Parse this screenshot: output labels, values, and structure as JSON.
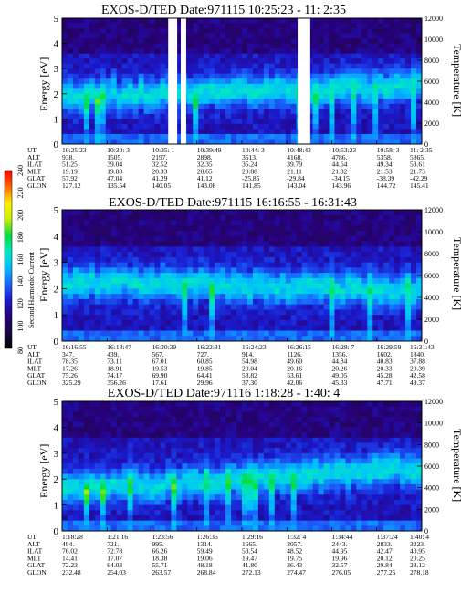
{
  "chart_data": [
    {
      "type": "heatmap",
      "title": "EXOS-D/TED   Date:971115  10:25:23 - 11: 2:35",
      "ylabel": "Energy [eV]",
      "y2label": "Temperature [K]",
      "ylim": [
        0,
        5
      ],
      "y2lim": [
        0,
        12000
      ],
      "yticks": [
        "0",
        "1",
        "2",
        "3",
        "4",
        "5"
      ],
      "y2ticks": [
        "0",
        "2000",
        "4000",
        "6000",
        "8000",
        "10000",
        "12000"
      ],
      "gaps_fraction": [
        [
          0.295,
          0.32
        ],
        [
          0.33,
          0.345
        ],
        [
          0.655,
          0.69
        ]
      ],
      "table_labels": [
        "UT",
        "ALT",
        "ILAT",
        "MLT",
        "GLAT",
        "GLON"
      ],
      "table": [
        [
          "10:25:23",
          "938.",
          "51.25",
          "19.19",
          "57.92",
          "127.12"
        ],
        [
          "10:30: 3",
          "1505.",
          "39.04",
          "19.88",
          "47.04",
          "135.54"
        ],
        [
          "10:35: 1",
          "2197.",
          "32.52",
          "20.33",
          "41.29",
          "140.05"
        ],
        [
          "10:39:49",
          "2898.",
          "32.35",
          "20.65",
          "41.12",
          "143.08"
        ],
        [
          "10:44: 3",
          "3513.",
          "35.24",
          "20.88",
          "-25.85",
          "141.85"
        ],
        [
          "10:48:43",
          "4168.",
          "39.79",
          "21.11",
          "-29.84",
          "143.04"
        ],
        [
          "10:53:23",
          "4786.",
          "44.64",
          "21.32",
          "-34.15",
          "143.96"
        ],
        [
          "10:58: 3",
          "5358.",
          "49.34",
          "21.53",
          "-38.39",
          "144.72"
        ],
        [
          "11: 2:35",
          "5865.",
          "53.61",
          "21.73",
          "-42.29",
          "145.41"
        ]
      ]
    },
    {
      "type": "heatmap",
      "title": "EXOS-D/TED   Date:971115  16:16:55 - 16:31:43",
      "ylabel": "Energy [eV]",
      "y2label": "Temperature [K]",
      "ylim": [
        0,
        5
      ],
      "y2lim": [
        0,
        12000
      ],
      "yticks": [
        "0",
        "1",
        "2",
        "3",
        "4",
        "5"
      ],
      "y2ticks": [
        "0",
        "2000",
        "4000",
        "6000",
        "8000",
        "10000",
        "12000"
      ],
      "table_labels": [
        "UT",
        "ALT",
        "ILAT",
        "MLT",
        "GLAT",
        "GLON"
      ],
      "table": [
        [
          "16:16:55",
          "347.",
          "78.35",
          "17.26",
          "75.26",
          "325.29"
        ],
        [
          "16:18:47",
          "439.",
          "73.11",
          "18.91",
          "74.17",
          "356.26"
        ],
        [
          "16:20:39",
          "567.",
          "67.01",
          "19.53",
          "69.90",
          "17.61"
        ],
        [
          "16:22:31",
          "727.",
          "60.85",
          "19.85",
          "64.41",
          "29.96"
        ],
        [
          "16:24:23",
          "914.",
          "54.98",
          "20.04",
          "58.82",
          "37.30"
        ],
        [
          "16:26:15",
          "1126.",
          "49.60",
          "20.16",
          "53.61",
          "42.06"
        ],
        [
          "16:28: 7",
          "1356.",
          "44.84",
          "20.26",
          "49.05",
          "45.33"
        ],
        [
          "16:29:59",
          "1602.",
          "40.83",
          "20.33",
          "45.28",
          "47.71"
        ],
        [
          "16:31:43",
          "1840.",
          "37.88",
          "20.39",
          "42.58",
          "49.37"
        ]
      ]
    },
    {
      "type": "heatmap",
      "title": "EXOS-D/TED   Date:971116  1:18:28 - 1:40: 4",
      "ylabel": "Energy [eV]",
      "y2label": "Temperature [K]",
      "ylim": [
        0,
        5
      ],
      "y2lim": [
        0,
        12000
      ],
      "yticks": [
        "0",
        "1",
        "2",
        "3",
        "4",
        "5"
      ],
      "y2ticks": [
        "0",
        "2000",
        "4000",
        "6000",
        "8000",
        "10000",
        "12000"
      ],
      "table_labels": [
        "UT",
        "ALT",
        "ILAT",
        "MLT",
        "GLAT",
        "GLON"
      ],
      "table": [
        [
          "1:18:28",
          "494.",
          "76.02",
          "14.41",
          "72.23",
          "232.48"
        ],
        [
          "1:21:16",
          "721.",
          "72.78",
          "17.07",
          "64.03",
          "254.03"
        ],
        [
          "1:23:56",
          "995.",
          "66.26",
          "18.38",
          "55.71",
          "263.57"
        ],
        [
          "1:26:36",
          "1314.",
          "59.49",
          "19.06",
          "48.18",
          "268.84"
        ],
        [
          "1:29:16",
          "1665.",
          "53.54",
          "19.47",
          "41.80",
          "272.13"
        ],
        [
          "1:32: 4",
          "2057.",
          "48.52",
          "19.75",
          "36.43",
          "274.47"
        ],
        [
          "1:34:44",
          "2443.",
          "44.95",
          "19.96",
          "32.57",
          "276.05"
        ],
        [
          "1:37:24",
          "2833.",
          "42.47",
          "20.12",
          "29.84",
          "277.25"
        ],
        [
          "1:40: 4",
          "3223.",
          "40.95",
          "20.25",
          "28.12",
          "278.18"
        ]
      ]
    }
  ],
  "colorbar": {
    "label": "Second Harmonic Current",
    "ticks": [
      "80",
      "100",
      "120",
      "140",
      "160",
      "180",
      "200",
      "220",
      "240"
    ],
    "stops": [
      "#000000",
      "#1a0a40",
      "#28007a",
      "#1a1acc",
      "#1a66ff",
      "#00c0ff",
      "#00e8c0",
      "#00dd40",
      "#ccee00",
      "#ffee00",
      "#ff6600",
      "#ff0000"
    ]
  }
}
